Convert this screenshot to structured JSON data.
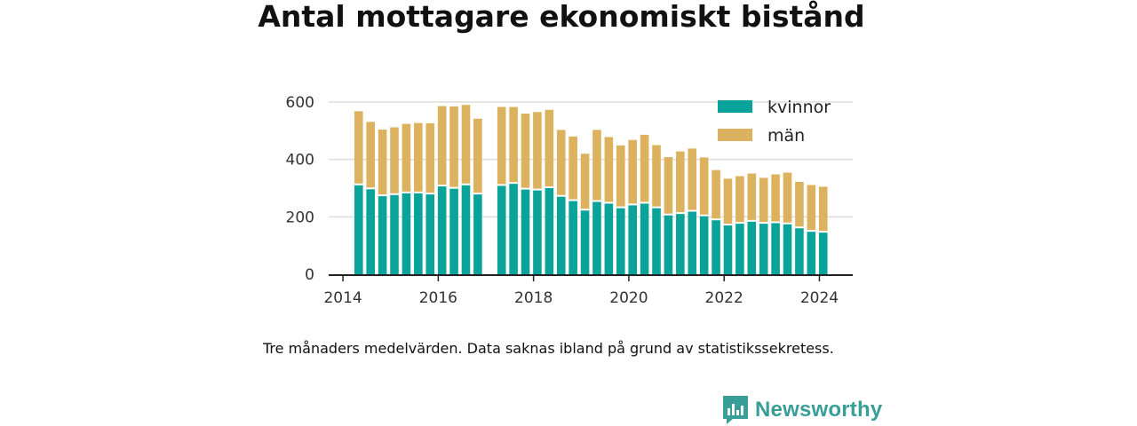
{
  "title": "Antal mottagare ekonomiskt bistånd",
  "caption": "Tre månaders medelvärden. Data saknas ibland på grund av statistikssekretess.",
  "brand": {
    "name": "Newsworthy",
    "color": "#3a9e98"
  },
  "colors": {
    "kvinnor": "#0aa39a",
    "man": "#dcb25e",
    "axis": "#222222",
    "grid": "#dddddd"
  },
  "chart_data": {
    "type": "bar",
    "stacked": true,
    "x_axis": {
      "range": [
        2013.7,
        2024.7
      ],
      "ticks": [
        2014,
        2016,
        2018,
        2020,
        2022,
        2024
      ]
    },
    "y_axis": {
      "range": [
        0,
        600
      ],
      "ticks": [
        0,
        200,
        400,
        600
      ]
    },
    "grid": "horizontal",
    "legend": {
      "position": "top-right",
      "entries": [
        "kvinnor",
        "män"
      ]
    },
    "x": [
      2014.33,
      2014.58,
      2014.83,
      2015.08,
      2015.33,
      2015.58,
      2015.83,
      2016.08,
      2016.33,
      2016.58,
      2016.83,
      2017.33,
      2017.58,
      2017.83,
      2018.08,
      2018.33,
      2018.58,
      2018.83,
      2019.08,
      2019.33,
      2019.58,
      2019.83,
      2020.08,
      2020.33,
      2020.58,
      2020.83,
      2021.08,
      2021.33,
      2021.58,
      2021.83,
      2022.08,
      2022.33,
      2022.58,
      2022.83,
      2023.08,
      2023.33,
      2023.58,
      2023.83,
      2024.08
    ],
    "series": [
      {
        "name": "kvinnor",
        "values": [
          310,
          296,
          272,
          276,
          282,
          282,
          278,
          306,
          298,
          310,
          278,
          308,
          315,
          295,
          292,
          300,
          270,
          255,
          222,
          252,
          246,
          230,
          240,
          246,
          230,
          205,
          210,
          218,
          202,
          188,
          170,
          176,
          183,
          176,
          178,
          174,
          160,
          148,
          145
        ]
      },
      {
        "name": "män",
        "values": [
          258,
          235,
          232,
          236,
          242,
          245,
          248,
          280,
          287,
          280,
          264,
          275,
          268,
          265,
          273,
          273,
          233,
          225,
          198,
          251,
          232,
          219,
          228,
          240,
          220,
          203,
          218,
          220,
          205,
          175,
          163,
          166,
          168,
          160,
          170,
          180,
          162,
          163,
          160
        ]
      }
    ]
  }
}
